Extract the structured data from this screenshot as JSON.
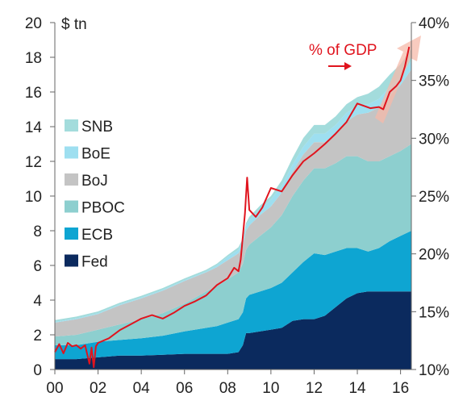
{
  "chart_data": {
    "type": "area",
    "y_unit_left": "$ tn",
    "ylim_left": [
      0,
      20
    ],
    "left_ticks": [
      "0",
      "2",
      "4",
      "6",
      "8",
      "10",
      "12",
      "14",
      "16",
      "18",
      "20"
    ],
    "ylim_right": [
      10,
      40
    ],
    "right_ticks": [
      "10%",
      "15%",
      "20%",
      "25%",
      "30%",
      "35%",
      "40%"
    ],
    "xlim": [
      2000,
      2016.5
    ],
    "x_ticks": [
      "00",
      "02",
      "04",
      "06",
      "08",
      "10",
      "12",
      "14",
      "16"
    ],
    "legend_position": "left",
    "x": [
      2000,
      2001,
      2002,
      2003,
      2004,
      2005,
      2006,
      2007,
      2007.5,
      2008,
      2008.5,
      2008.7,
      2008.85,
      2009,
      2009.5,
      2010,
      2010.5,
      2011,
      2011.5,
      2012,
      2012.5,
      2013,
      2013.5,
      2014,
      2014.5,
      2015,
      2015.5,
      2016,
      2016.5
    ],
    "series": [
      {
        "name": "Fed",
        "color": "#0b2a5e",
        "values": [
          0.6,
          0.6,
          0.7,
          0.8,
          0.8,
          0.85,
          0.9,
          0.9,
          0.9,
          0.9,
          1.0,
          1.4,
          2.1,
          2.1,
          2.2,
          2.3,
          2.4,
          2.8,
          2.9,
          2.9,
          3.1,
          3.6,
          4.1,
          4.4,
          4.5,
          4.5,
          4.5,
          4.5,
          4.5
        ]
      },
      {
        "name": "ECB",
        "color": "#0ea5d2",
        "values": [
          0.8,
          0.8,
          0.9,
          0.9,
          1.0,
          1.1,
          1.3,
          1.5,
          1.6,
          1.8,
          1.9,
          1.9,
          2.0,
          2.2,
          2.3,
          2.4,
          2.6,
          2.8,
          3.3,
          3.8,
          3.5,
          3.2,
          2.9,
          2.6,
          2.3,
          2.5,
          2.9,
          3.2,
          3.5
        ]
      },
      {
        "name": "PBOC",
        "color": "#8dcfcf",
        "values": [
          0.5,
          0.6,
          0.7,
          0.9,
          1.1,
          1.3,
          1.6,
          2.1,
          2.3,
          2.5,
          2.7,
          2.8,
          2.8,
          2.9,
          3.2,
          3.5,
          3.9,
          4.4,
          4.7,
          4.9,
          5.0,
          5.1,
          5.3,
          5.3,
          5.2,
          5.0,
          4.9,
          4.9,
          5.0
        ]
      },
      {
        "name": "BoJ",
        "color": "#c4c4c4",
        "values": [
          0.8,
          0.9,
          0.9,
          1.1,
          1.2,
          1.3,
          1.3,
          1.1,
          1.1,
          1.1,
          1.1,
          1.1,
          1.1,
          1.1,
          1.2,
          1.2,
          1.3,
          1.4,
          1.5,
          1.5,
          1.5,
          1.7,
          2.0,
          2.4,
          2.8,
          3.1,
          3.5,
          3.8,
          4.3
        ]
      },
      {
        "name": "BoE",
        "color": "#9edff0",
        "values": [
          0.05,
          0.05,
          0.05,
          0.05,
          0.05,
          0.05,
          0.05,
          0.05,
          0.1,
          0.2,
          0.2,
          0.2,
          0.3,
          0.3,
          0.35,
          0.4,
          0.4,
          0.4,
          0.45,
          0.5,
          0.5,
          0.5,
          0.5,
          0.5,
          0.5,
          0.5,
          0.5,
          0.5,
          0.5
        ]
      },
      {
        "name": "SNB",
        "color": "#a3dcdc",
        "values": [
          0.1,
          0.1,
          0.1,
          0.1,
          0.1,
          0.1,
          0.1,
          0.1,
          0.1,
          0.1,
          0.15,
          0.15,
          0.15,
          0.2,
          0.2,
          0.2,
          0.3,
          0.4,
          0.5,
          0.5,
          0.5,
          0.5,
          0.5,
          0.5,
          0.6,
          0.7,
          0.7,
          0.7,
          0.7
        ]
      }
    ],
    "gdp_line": {
      "label": "% of GDP",
      "color": "#e0141e",
      "axis": "right",
      "x": [
        2000,
        2000.2,
        2000.4,
        2000.6,
        2000.8,
        2001,
        2001.2,
        2001.4,
        2001.6,
        2001.7,
        2001.8,
        2001.9,
        2002,
        2002.5,
        2003,
        2003.5,
        2004,
        2004.5,
        2005,
        2005.5,
        2006,
        2006.5,
        2007,
        2007.5,
        2008,
        2008.3,
        2008.5,
        2008.6,
        2008.7,
        2008.8,
        2008.9,
        2009,
        2009.3,
        2009.6,
        2010,
        2010.5,
        2011,
        2011.5,
        2012,
        2012.5,
        2013,
        2013.5,
        2014,
        2014.3,
        2014.6,
        2015,
        2015.2,
        2015.5,
        2015.8,
        2016,
        2016.2,
        2016.4
      ],
      "values": [
        11.5,
        12.2,
        11.4,
        12.3,
        12.0,
        12.1,
        11.8,
        12.1,
        10.5,
        11.9,
        10.2,
        12.0,
        12.3,
        12.7,
        13.4,
        13.9,
        14.4,
        14.7,
        14.4,
        14.9,
        15.5,
        15.9,
        16.4,
        17.3,
        17.9,
        18.8,
        18.5,
        19.5,
        21.5,
        23.5,
        26.6,
        23.8,
        23.2,
        24.0,
        25.7,
        25.4,
        26.8,
        28.0,
        28.7,
        29.5,
        30.4,
        31.4,
        33.0,
        32.8,
        32.6,
        32.7,
        32.5,
        34.0,
        34.5,
        35.0,
        36.2,
        37.9
      ]
    }
  }
}
